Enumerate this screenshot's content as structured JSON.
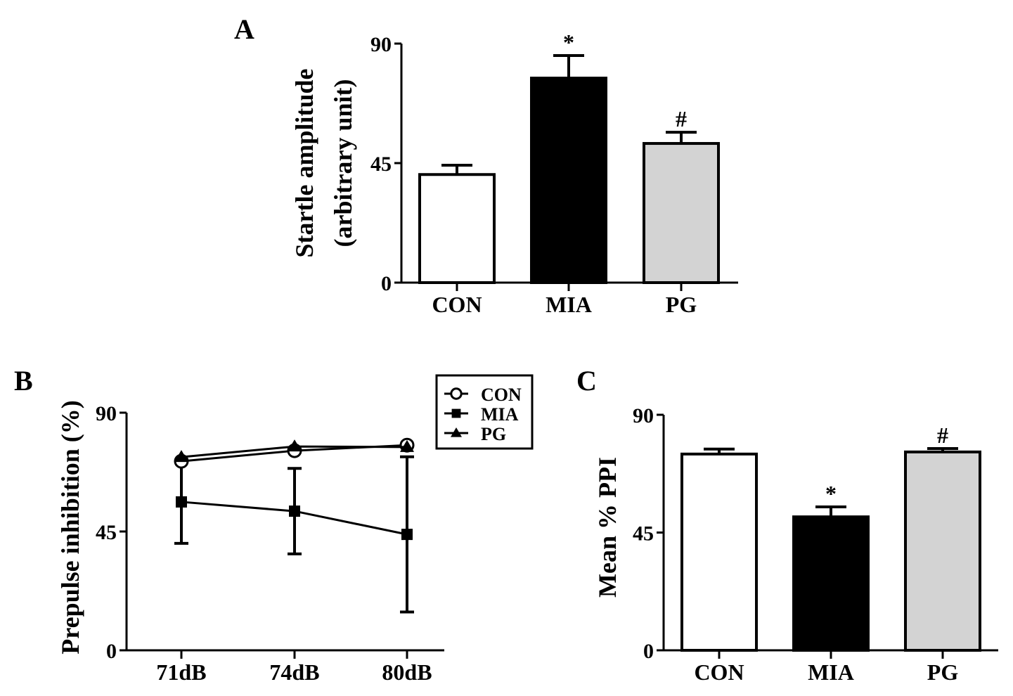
{
  "colors": {
    "con": "#ffffff",
    "mia": "#000000",
    "pg": "#d3d3d3",
    "stroke": "#000000"
  },
  "chart_data": [
    {
      "panel": "A",
      "type": "bar",
      "ylabel_line1": "Startle amplitude",
      "ylabel_line2": "(arbitrary unit)",
      "categories": [
        "CON",
        "MIA",
        "PG"
      ],
      "values": [
        40.7,
        77.0,
        52.4
      ],
      "errors": [
        3.5,
        8.5,
        4.2
      ],
      "annotations": [
        "",
        "*",
        "#"
      ],
      "ylim": [
        0,
        90
      ],
      "yticks": [
        "0",
        "45",
        "90"
      ]
    },
    {
      "panel": "B",
      "type": "line",
      "ylabel": "Prepulse inhibition (%)",
      "x": [
        "71dB",
        "74dB",
        "80dB"
      ],
      "ylim": [
        0,
        90
      ],
      "yticks": [
        "0",
        "45",
        "90"
      ],
      "legend_position": "top-right",
      "series": [
        {
          "name": "CON",
          "marker": "open-circle",
          "values": [
            71.6,
            75.6,
            77.7
          ],
          "errors": [
            0,
            0,
            0
          ]
        },
        {
          "name": "MIA",
          "marker": "square",
          "values": [
            56.2,
            52.7,
            43.9
          ],
          "errors": [
            15.7,
            16.2,
            29.4
          ]
        },
        {
          "name": "PG",
          "marker": "triangle",
          "values": [
            73.2,
            77.2,
            77.0
          ],
          "errors": [
            0,
            0,
            0
          ]
        }
      ]
    },
    {
      "panel": "C",
      "type": "bar",
      "ylabel": "Mean % PPI",
      "categories": [
        "CON",
        "MIA",
        "PG"
      ],
      "values": [
        75.0,
        51.0,
        75.8
      ],
      "errors": [
        1.9,
        3.8,
        1.3
      ],
      "annotations": [
        "",
        "*",
        "#"
      ],
      "ylim": [
        0,
        90
      ],
      "yticks": [
        "0",
        "45",
        "90"
      ]
    }
  ]
}
